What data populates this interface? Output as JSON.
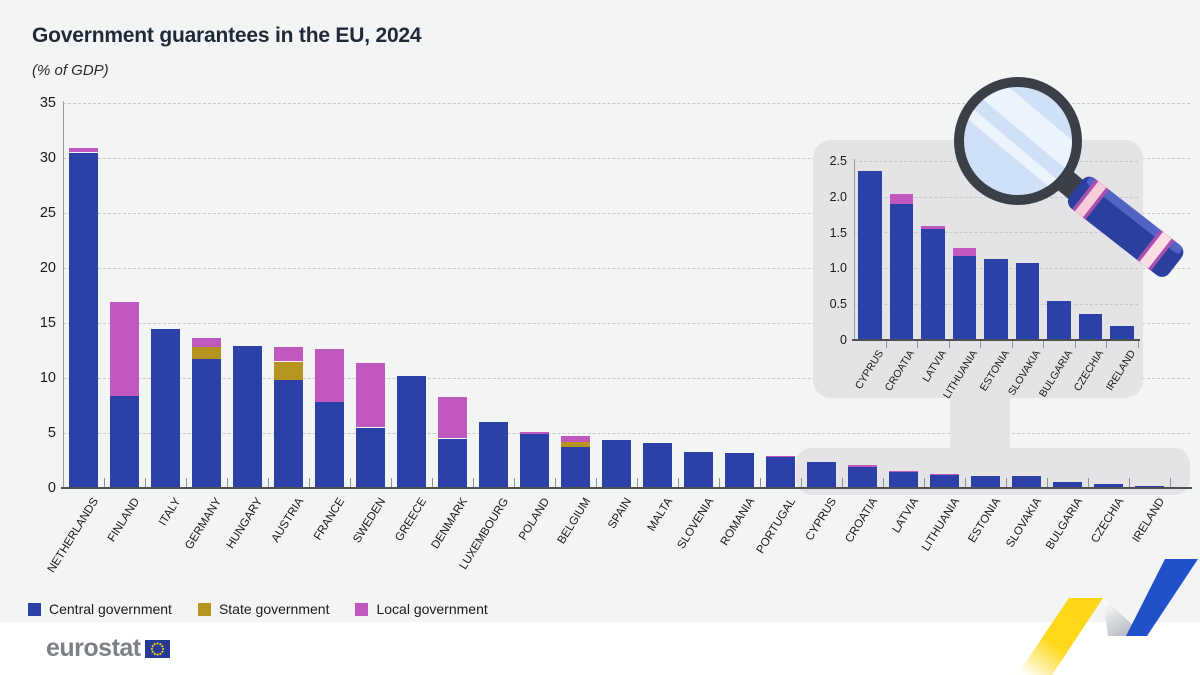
{
  "header": {
    "title": "Government guarantees in the EU, 2024",
    "subtitle": "(% of GDP)"
  },
  "legend": {
    "items": [
      {
        "label": "Central government",
        "color": "#2B41A8"
      },
      {
        "label": "State government",
        "color": "#B5951F"
      },
      {
        "label": "Local government",
        "color": "#C058BE"
      }
    ]
  },
  "footer": {
    "logo_text": "eurostat"
  },
  "chart_data": [
    {
      "type": "bar",
      "stacked": true,
      "title": "Government guarantees in the EU, 2024",
      "ylabel": "% of GDP",
      "ylim": [
        0,
        35
      ],
      "ytick_labels": [
        "0",
        "5",
        "10",
        "15",
        "20",
        "25",
        "30",
        "35"
      ],
      "yticks": [
        0,
        5,
        10,
        15,
        20,
        25,
        30,
        35
      ],
      "grid": "dashed-horizontal",
      "legend_position": "bottom",
      "categories": [
        "NETHERLANDS",
        "FINLAND",
        "ITALY",
        "GERMANY",
        "HUNGARY",
        "AUSTRIA",
        "FRANCE",
        "SWEDEN",
        "GREECE",
        "DENMARK",
        "LUXEMBOURG",
        "POLAND",
        "BELGIUM",
        "SPAIN",
        "MALTA",
        "SLOVENIA",
        "ROMANIA",
        "PORTUGAL",
        "CYPRUS",
        "CROATIA",
        "LATVIA",
        "LITHUANIA",
        "ESTONIA",
        "SLOVAKIA",
        "BULGARIA",
        "CZECHIA",
        "IRELAND"
      ],
      "series": [
        {
          "name": "Central government",
          "color": "#2B41A8",
          "values": [
            30.5,
            8.4,
            14.5,
            11.7,
            12.9,
            9.8,
            7.8,
            5.5,
            10.2,
            4.5,
            6.0,
            4.95,
            3.7,
            4.4,
            4.1,
            3.3,
            3.2,
            2.85,
            2.36,
            1.9,
            1.56,
            1.18,
            1.13,
            1.08,
            0.54,
            0.36,
            0.2
          ]
        },
        {
          "name": "State government",
          "color": "#B5951F",
          "values": [
            0,
            0,
            0,
            1.1,
            0,
            1.7,
            0,
            0,
            0,
            0,
            0,
            0,
            0.45,
            0,
            0,
            0,
            0,
            0,
            0,
            0,
            0,
            0,
            0,
            0,
            0,
            0,
            0
          ]
        },
        {
          "name": "Local government",
          "color": "#C058BE",
          "values": [
            0.4,
            8.5,
            0,
            0.8,
            0,
            1.3,
            4.8,
            5.9,
            0,
            3.8,
            0,
            0.15,
            0.55,
            0,
            0,
            0,
            0,
            0.06,
            0,
            0.15,
            0.03,
            0.11,
            0,
            0,
            0,
            0,
            0
          ]
        }
      ]
    },
    {
      "type": "bar",
      "stacked": true,
      "role": "zoom-inset",
      "note": "magnified view of the smallest values",
      "ylim": [
        0,
        2.5
      ],
      "ytick_labels": [
        "0",
        "0.5",
        "1.0",
        "1.5",
        "2.0",
        "2.5"
      ],
      "yticks": [
        0,
        0.5,
        1.0,
        1.5,
        2.0,
        2.5
      ],
      "grid": "dashed-horizontal",
      "categories": [
        "CYPRUS",
        "CROATIA",
        "LATVIA",
        "LITHUANIA",
        "ESTONIA",
        "SLOVAKIA",
        "BULGARIA",
        "CZECHIA",
        "IRELAND"
      ],
      "series": [
        {
          "name": "Central government",
          "color": "#2B41A8",
          "values": [
            2.36,
            1.9,
            1.56,
            1.18,
            1.13,
            1.08,
            0.54,
            0.36,
            0.2
          ]
        },
        {
          "name": "State government",
          "color": "#B5951F",
          "values": [
            0,
            0,
            0,
            0,
            0,
            0,
            0,
            0,
            0
          ]
        },
        {
          "name": "Local government",
          "color": "#C058BE",
          "values": [
            0,
            0.15,
            0.03,
            0.11,
            0,
            0,
            0,
            0,
            0
          ]
        }
      ]
    }
  ]
}
